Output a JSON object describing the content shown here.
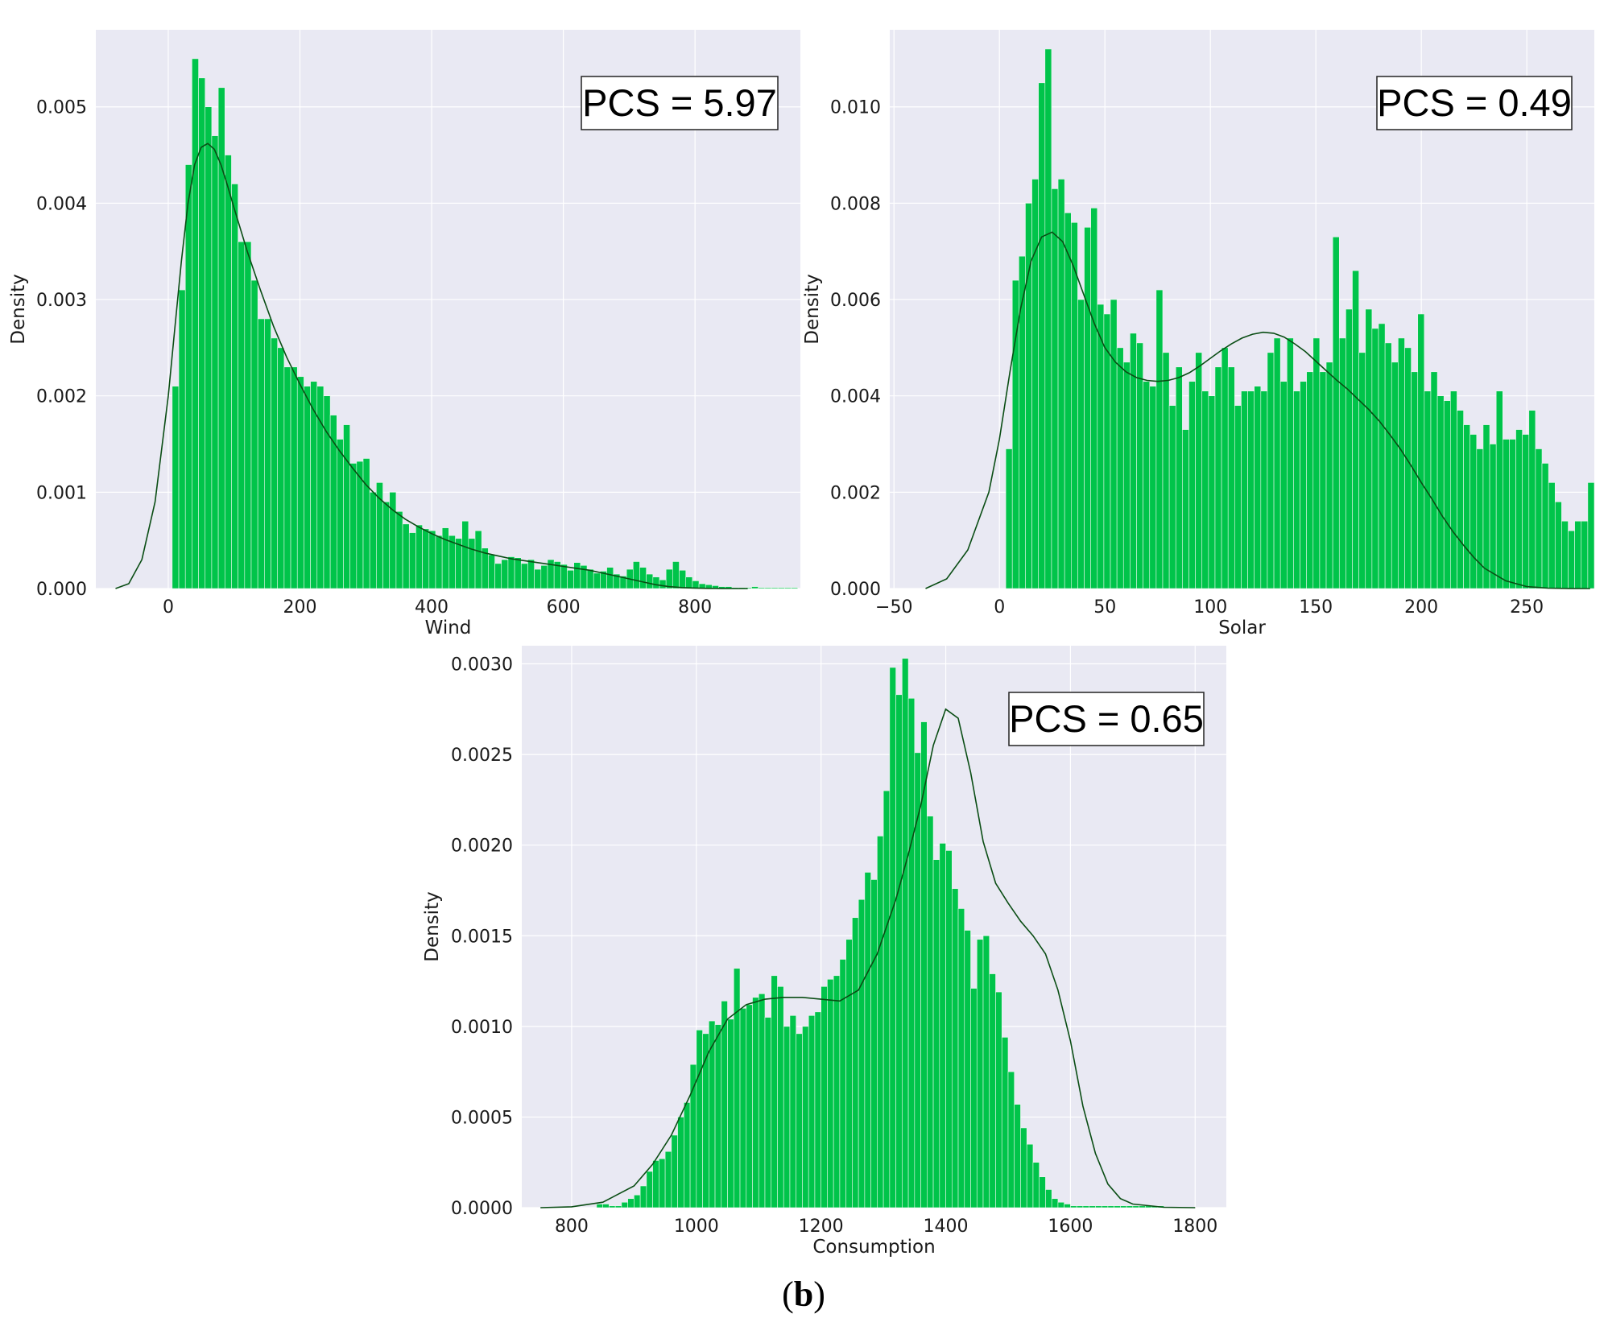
{
  "figure_caption": {
    "open": "(",
    "letter": "b",
    "close": ")"
  },
  "colors": {
    "panel_bg": "#e9e9f3",
    "grid": "#ffffff",
    "bar": "#00c44a",
    "bar_edge": "#e9f7ee",
    "kde": "#0a4d14"
  },
  "chart_data": [
    {
      "type": "bar",
      "subtype": "histogram-with-kde",
      "xlabel": "Wind",
      "ylabel": "Density",
      "annotation": "PCS = 5.97",
      "annotation_position": "top-right",
      "grid": true,
      "xlim": [
        -110,
        960
      ],
      "ylim": [
        0,
        0.0058
      ],
      "xticks": [
        0,
        200,
        400,
        600,
        800
      ],
      "xtick_labels": [
        "0",
        "200",
        "400",
        "600",
        "800"
      ],
      "yticks": [
        0,
        0.001,
        0.002,
        0.003,
        0.004,
        0.005
      ],
      "ytick_labels": [
        "0.000",
        "0.001",
        "0.002",
        "0.003",
        "0.004",
        "0.005"
      ],
      "bin_start": 6,
      "bin_width": 10,
      "values": [
        0.0021,
        0.0031,
        0.0044,
        0.0055,
        0.0053,
        0.005,
        0.0047,
        0.0052,
        0.0045,
        0.0042,
        0.0036,
        0.0036,
        0.0032,
        0.0028,
        0.0028,
        0.0026,
        0.0025,
        0.0023,
        0.0023,
        0.0022,
        0.0021,
        0.00215,
        0.0021,
        0.002,
        0.0018,
        0.00155,
        0.0017,
        0.0013,
        0.00132,
        0.00135,
        0.001,
        0.0011,
        0.0009,
        0.001,
        0.0008,
        0.00067,
        0.00058,
        0.00066,
        0.00062,
        0.0006,
        0.00055,
        0.00063,
        0.00055,
        0.00052,
        0.0007,
        0.00052,
        0.0006,
        0.00042,
        0.00035,
        0.00026,
        0.0003,
        0.00033,
        0.00032,
        0.00026,
        0.0003,
        0.0002,
        0.00024,
        0.0003,
        0.00028,
        0.00025,
        0.00019,
        0.00027,
        0.00024,
        0.0002,
        0.00016,
        0.00018,
        0.00022,
        0.00015,
        0.00013,
        0.0002,
        0.00028,
        0.00022,
        0.00015,
        0.00012,
        9e-05,
        0.0002,
        0.00028,
        0.00019,
        0.00012,
        8e-05,
        5e-05,
        4e-05,
        3e-05,
        2e-05,
        2e-05,
        1e-05,
        1e-05,
        1e-05,
        2e-05,
        1e-05,
        1e-05,
        1e-05,
        1e-05,
        1e-05,
        1e-05,
        1e-05,
        1e-05,
        1e-05,
        1e-05,
        1e-05,
        1e-05,
        1e-05,
        1e-05,
        1e-05,
        1e-05,
        1e-05,
        1e-05,
        1e-05,
        1e-05,
        1e-05,
        1e-05,
        1e-05,
        1e-05,
        1e-05,
        1e-05,
        1e-05,
        1e-05,
        1e-05,
        1e-05,
        1e-05,
        1e-05,
        1e-05,
        1e-05,
        1e-05,
        1e-05,
        1e-05,
        1e-05,
        1e-05,
        1e-05,
        1e-05,
        1e-05,
        1e-05,
        1e-05,
        1e-05,
        1e-05
      ],
      "kde": {
        "x": [
          -80,
          -60,
          -40,
          -20,
          0,
          10,
          20,
          30,
          40,
          50,
          60,
          70,
          80,
          90,
          100,
          120,
          140,
          160,
          180,
          200,
          220,
          240,
          260,
          280,
          300,
          320,
          340,
          360,
          380,
          400,
          420,
          440,
          460,
          480,
          500,
          520,
          540,
          560,
          580,
          600,
          620,
          640,
          660,
          680,
          700,
          720,
          740,
          760,
          780,
          800,
          820,
          840,
          860,
          880
        ],
        "y": [
          0,
          5e-05,
          0.0003,
          0.0009,
          0.002,
          0.0027,
          0.0034,
          0.004,
          0.0044,
          0.00458,
          0.00462,
          0.00456,
          0.0044,
          0.00418,
          0.00395,
          0.0035,
          0.0031,
          0.00272,
          0.0024,
          0.00212,
          0.00186,
          0.00163,
          0.00143,
          0.00125,
          0.00108,
          0.00094,
          0.00082,
          0.00072,
          0.00064,
          0.00057,
          0.00051,
          0.00046,
          0.00041,
          0.00037,
          0.00034,
          0.00031,
          0.00029,
          0.00027,
          0.00025,
          0.00023,
          0.00021,
          0.00019,
          0.00016,
          0.00013,
          0.0001,
          7e-05,
          4e-05,
          2e-05,
          1e-05,
          5e-06,
          2e-06,
          1e-06,
          0,
          0
        ]
      }
    },
    {
      "type": "bar",
      "subtype": "histogram-with-kde",
      "xlabel": "Solar",
      "ylabel": "Density",
      "annotation": "PCS = 0.49",
      "annotation_position": "top-right",
      "grid": true,
      "xlim": [
        -52,
        282
      ],
      "ylim": [
        0,
        0.0116
      ],
      "xticks": [
        -50,
        0,
        50,
        100,
        150,
        200,
        250
      ],
      "xtick_labels": [
        "−50",
        "0",
        "50",
        "100",
        "150",
        "200",
        "250"
      ],
      "yticks": [
        0,
        0.002,
        0.004,
        0.006,
        0.008,
        0.01
      ],
      "ytick_labels": [
        "0.000",
        "0.002",
        "0.004",
        "0.006",
        "0.008",
        "0.010"
      ],
      "bin_start": 3,
      "bin_width": 3.1,
      "values": [
        0.0029,
        0.0064,
        0.0069,
        0.008,
        0.0085,
        0.0105,
        0.0112,
        0.0083,
        0.0085,
        0.0078,
        0.0076,
        0.006,
        0.0075,
        0.0079,
        0.0059,
        0.0057,
        0.006,
        0.005,
        0.0047,
        0.0053,
        0.0051,
        0.0043,
        0.0042,
        0.0062,
        0.0049,
        0.0038,
        0.0046,
        0.0033,
        0.0043,
        0.0049,
        0.0041,
        0.004,
        0.0046,
        0.005,
        0.0046,
        0.0038,
        0.0041,
        0.0041,
        0.0042,
        0.0041,
        0.0049,
        0.0052,
        0.0043,
        0.0052,
        0.0041,
        0.0043,
        0.0045,
        0.0052,
        0.0045,
        0.0047,
        0.0073,
        0.0052,
        0.0058,
        0.0066,
        0.0049,
        0.0058,
        0.0054,
        0.0055,
        0.0051,
        0.0047,
        0.0052,
        0.005,
        0.0045,
        0.0057,
        0.0041,
        0.0045,
        0.004,
        0.0039,
        0.0041,
        0.0037,
        0.0034,
        0.0032,
        0.0029,
        0.0034,
        0.003,
        0.0041,
        0.0031,
        0.0031,
        0.0033,
        0.0032,
        0.0037,
        0.0029,
        0.0026,
        0.0022,
        0.0018,
        0.0014,
        0.0012,
        0.0014,
        0.0014,
        0.0022,
        0.0017,
        0.0012,
        0.001,
        0.0017,
        0.0014,
        0.0012,
        0.0008,
        0.0006,
        0.0007,
        0.0002,
        0.0002,
        0.0001,
        0.0001,
        0.0002,
        0.0001,
        0.0001,
        0.0001,
        0.0001,
        0.0001,
        0.0001,
        0.0001,
        0.0001,
        0.0001,
        0.0001,
        0.0001,
        0.0001,
        0.0001,
        0.0001,
        0.0001,
        0.0001,
        0.0001,
        0.0001,
        0.0001,
        0.0001,
        0.0001,
        0.0001,
        0.0001,
        0.0001,
        0.0001,
        0.0001,
        0.0001,
        0.0001,
        0.0001
      ],
      "kde": {
        "x": [
          -35,
          -25,
          -15,
          -5,
          0,
          5,
          10,
          15,
          20,
          25,
          30,
          35,
          40,
          45,
          50,
          55,
          60,
          65,
          70,
          75,
          80,
          85,
          90,
          95,
          100,
          105,
          110,
          115,
          120,
          125,
          130,
          135,
          140,
          145,
          150,
          155,
          160,
          165,
          170,
          175,
          180,
          185,
          190,
          195,
          200,
          205,
          210,
          215,
          220,
          225,
          230,
          240,
          250,
          260,
          270,
          280
        ],
        "y": [
          0,
          0.0002,
          0.0008,
          0.002,
          0.0031,
          0.0045,
          0.0058,
          0.0068,
          0.0073,
          0.0074,
          0.0072,
          0.0067,
          0.0061,
          0.0055,
          0.005,
          0.0047,
          0.0045,
          0.00438,
          0.00432,
          0.0043,
          0.00432,
          0.00438,
          0.00448,
          0.00462,
          0.00478,
          0.00494,
          0.00508,
          0.0052,
          0.00528,
          0.00532,
          0.0053,
          0.00522,
          0.00508,
          0.00492,
          0.00472,
          0.00452,
          0.00432,
          0.00414,
          0.00393,
          0.00372,
          0.00348,
          0.0032,
          0.0029,
          0.00256,
          0.0022,
          0.00186,
          0.0015,
          0.00118,
          0.0009,
          0.00064,
          0.00042,
          0.00016,
          4e-05,
          8e-06,
          1e-06,
          0
        ]
      }
    },
    {
      "type": "bar",
      "subtype": "histogram-with-kde",
      "xlabel": "Consumption",
      "ylabel": "Density",
      "annotation": "PCS = 0.65",
      "annotation_position": "top-right",
      "grid": true,
      "xlim": [
        720,
        1850
      ],
      "ylim": [
        0,
        0.0031
      ],
      "xticks": [
        800,
        1000,
        1200,
        1400,
        1600,
        1800
      ],
      "xtick_labels": [
        "800",
        "1000",
        "1200",
        "1400",
        "1600",
        "1800"
      ],
      "yticks": [
        0,
        0.0005,
        0.001,
        0.0015,
        0.002,
        0.0025,
        0.003
      ],
      "ytick_labels": [
        "0.0000",
        "0.0005",
        "0.0010",
        "0.0015",
        "0.0020",
        "0.0025",
        "0.0030"
      ],
      "bin_start": 840,
      "bin_width": 10,
      "values": [
        2e-05,
        2e-05,
        1e-05,
        1e-05,
        3e-05,
        5e-05,
        7e-05,
        0.00012,
        0.0002,
        0.00026,
        0.00027,
        0.00031,
        0.0004,
        0.0005,
        0.00058,
        0.00079,
        0.00098,
        0.00096,
        0.00103,
        0.00101,
        0.00114,
        0.00104,
        0.00132,
        0.0011,
        0.00112,
        0.00116,
        0.00118,
        0.00105,
        0.00128,
        0.00122,
        0.001,
        0.00106,
        0.00096,
        0.001,
        0.00106,
        0.00108,
        0.00122,
        0.00126,
        0.00128,
        0.00137,
        0.00148,
        0.0016,
        0.0017,
        0.00185,
        0.00181,
        0.00205,
        0.0023,
        0.00298,
        0.00283,
        0.00303,
        0.00281,
        0.00251,
        0.00268,
        0.00216,
        0.00192,
        0.00201,
        0.00197,
        0.00176,
        0.00165,
        0.00153,
        0.00121,
        0.00148,
        0.0015,
        0.00129,
        0.00119,
        0.00094,
        0.00075,
        0.00057,
        0.00044,
        0.00035,
        0.00025,
        0.00017,
        0.0001,
        5e-05,
        3e-05,
        2e-05,
        1e-05,
        1e-05,
        1e-05,
        1e-05,
        1e-05,
        1e-05,
        1e-05,
        1e-05,
        1e-05,
        1e-05,
        1e-05,
        1e-05,
        1e-05,
        1e-05,
        1e-05
      ],
      "kde": {
        "x": [
          750,
          800,
          850,
          900,
          930,
          960,
          990,
          1020,
          1050,
          1080,
          1110,
          1140,
          1170,
          1200,
          1230,
          1260,
          1290,
          1320,
          1340,
          1360,
          1380,
          1400,
          1420,
          1440,
          1460,
          1480,
          1500,
          1520,
          1540,
          1560,
          1580,
          1600,
          1620,
          1640,
          1660,
          1680,
          1700,
          1750,
          1800
        ],
        "y": [
          0,
          5e-06,
          3e-05,
          0.00012,
          0.00024,
          0.0004,
          0.00062,
          0.00086,
          0.00104,
          0.00112,
          0.00115,
          0.00116,
          0.00116,
          0.00115,
          0.00114,
          0.0012,
          0.0014,
          0.0017,
          0.00195,
          0.00222,
          0.00255,
          0.00275,
          0.0027,
          0.0024,
          0.00202,
          0.00179,
          0.00168,
          0.00158,
          0.0015,
          0.0014,
          0.0012,
          0.00092,
          0.00056,
          0.0003,
          0.00013,
          5e-05,
          2e-05,
          2e-06,
          0
        ]
      }
    }
  ]
}
